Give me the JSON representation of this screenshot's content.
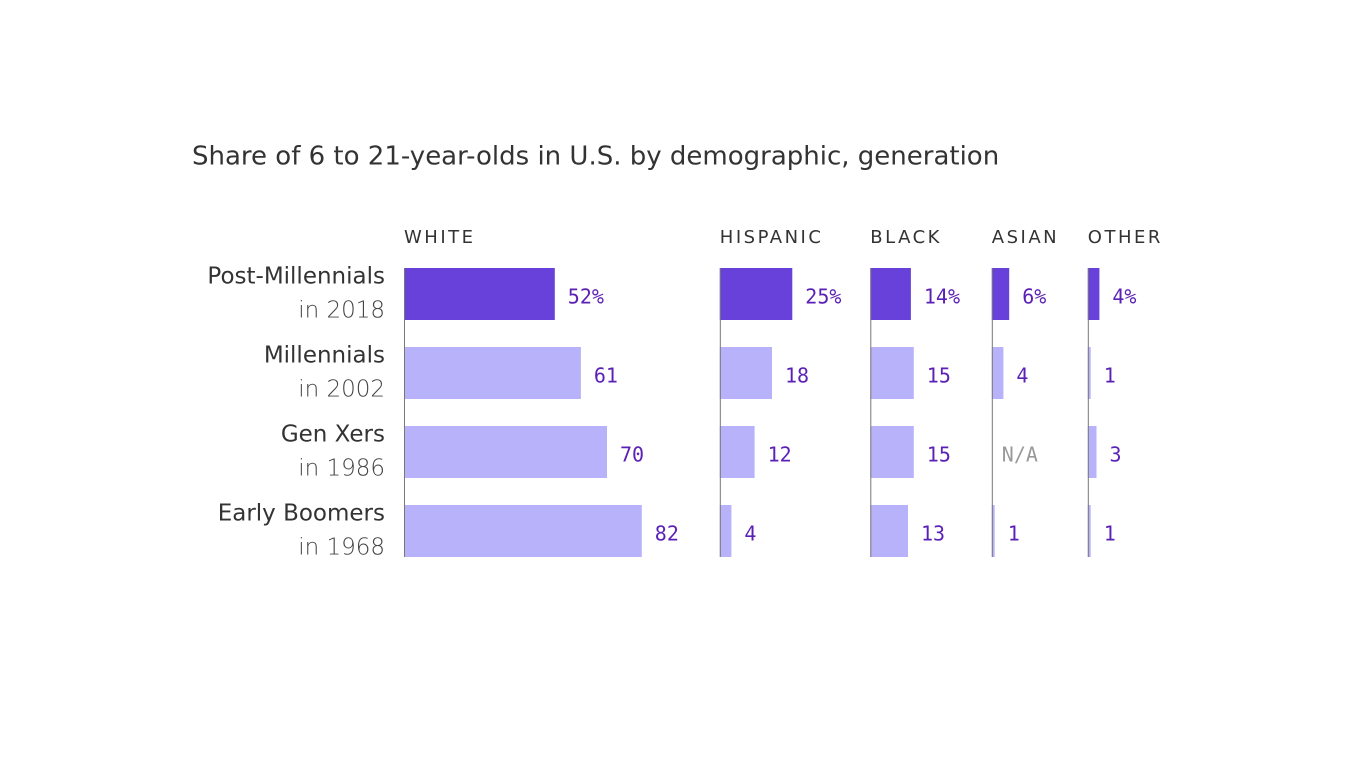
{
  "chart_data": {
    "type": "bar",
    "title": "Share of 6 to 21-year-olds in U.S. by demographic, generation",
    "categories": [
      "Post-Millennials",
      "Millennials",
      "Gen Xers",
      "Early Boomers"
    ],
    "category_sublabels": [
      "in 2018",
      "in 2002",
      "in 1986",
      "in 1968"
    ],
    "color": "#b8b2fb",
    "highlight_color": "#6741d9",
    "series": [
      {
        "name": "WHITE",
        "values": [
          52,
          61,
          70,
          82
        ],
        "value_labels": [
          "52%",
          "61",
          "70",
          "82"
        ]
      },
      {
        "name": "HISPANIC",
        "values": [
          25,
          18,
          12,
          4
        ],
        "value_labels": [
          "25%",
          "18",
          "12",
          "4"
        ]
      },
      {
        "name": "BLACK",
        "values": [
          14,
          15,
          15,
          13
        ],
        "value_labels": [
          "14%",
          "15",
          "15",
          "13"
        ]
      },
      {
        "name": "ASIAN",
        "values": [
          6,
          4,
          null,
          1
        ],
        "value_labels": [
          "6%",
          "4",
          "N/A",
          "1"
        ]
      },
      {
        "name": "OTHER",
        "values": [
          4,
          1,
          3,
          1
        ],
        "value_labels": [
          "4%",
          "1",
          "3",
          "1"
        ]
      }
    ]
  }
}
